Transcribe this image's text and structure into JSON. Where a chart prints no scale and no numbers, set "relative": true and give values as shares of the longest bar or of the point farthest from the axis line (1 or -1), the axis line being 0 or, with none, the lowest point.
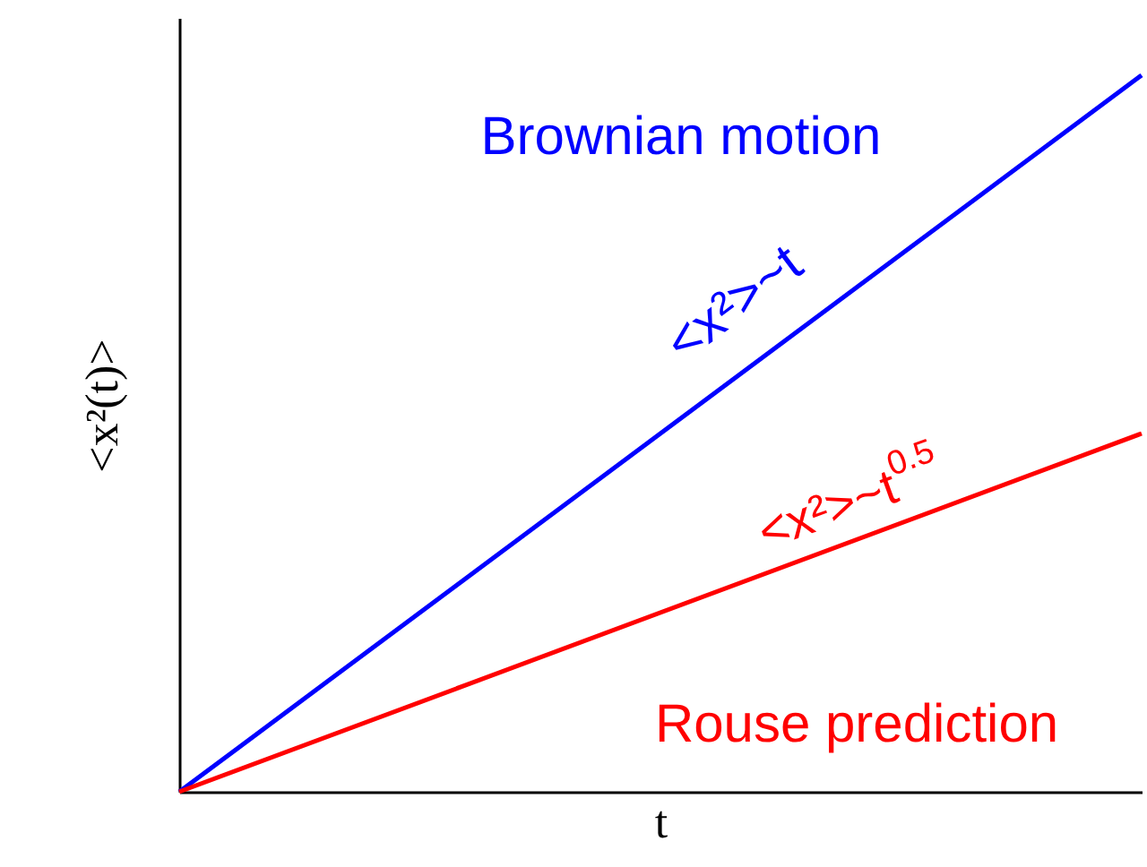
{
  "chart_data": {
    "type": "line",
    "relative": true,
    "categories": [
      null,
      null
    ],
    "xlabel": "t",
    "ylabel": "<x²(t)>",
    "series": [
      {
        "color": "#0000ff",
        "values": [
          0,
          1
        ]
      },
      {
        "color": "#ff0000",
        "values": [
          0,
          0.5
        ]
      }
    ],
    "annotations": [
      "Brownian motion",
      "<x²>~t",
      "<x²>~t$^{0.5}$",
      "Rouse prediction"
    ],
    "grid": false,
    "marker": "none",
    "line_style": "solid"
  }
}
